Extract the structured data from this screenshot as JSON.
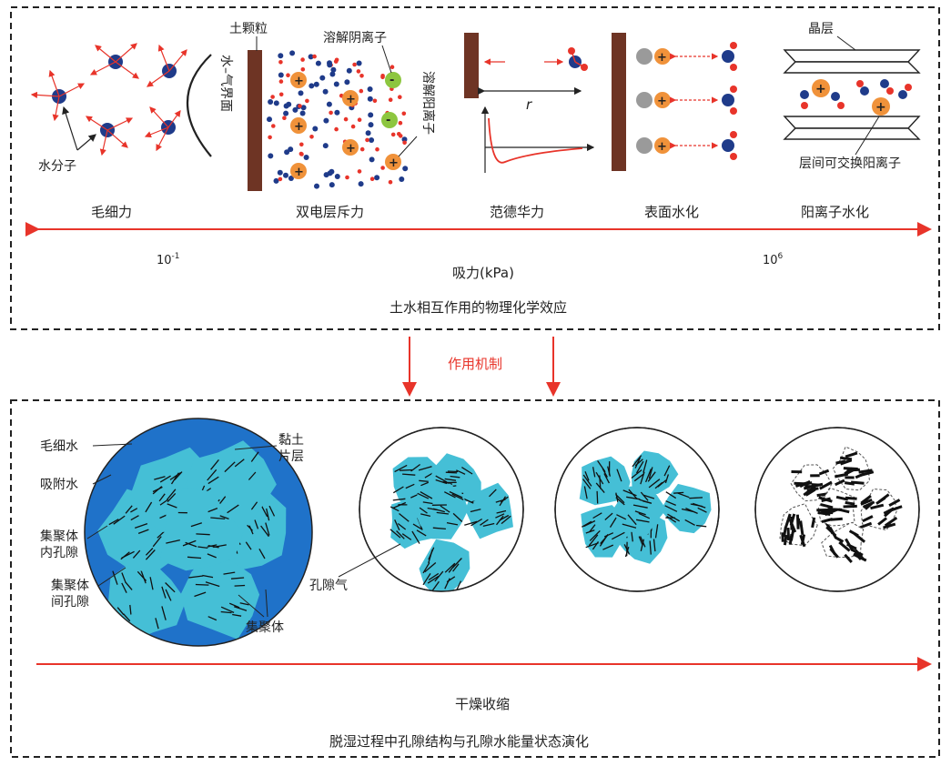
{
  "top_panel": {
    "title": "土水相互作用的物理化学效应",
    "axis_label": "吸力(kPa)",
    "axis_min": "10",
    "axis_min_exp": "-1",
    "axis_max": "10",
    "axis_max_exp": "6",
    "mechanisms": [
      "毛细力",
      "双电层斥力",
      "范德华力",
      "表面水化",
      "阳离子水化"
    ],
    "labels": {
      "water_molecule": "水分子",
      "interface": "水–气界面",
      "soil_particle": "土颗粒",
      "dissolved_anion": "溶解阴离子",
      "dissolved_cation": "溶解阳离子",
      "distance": "r",
      "crystal_layer": "晶层",
      "interlayer_cation": "层间可交换阳离子"
    }
  },
  "connector": {
    "label": "作用机制"
  },
  "bottom_panel": {
    "title": "脱湿过程中孔隙结构与孔隙水能量状态演化",
    "axis_label": "干燥收缩",
    "labels": {
      "capillary_water": "毛细水",
      "clay_sheet": "黏土\n片层",
      "adsorbed_water": "吸附水",
      "intra_pore": "集聚体\n内孔隙",
      "inter_pore": "集聚体\n间孔隙",
      "aggregate": "集聚体",
      "pore_air": "孔隙气"
    }
  },
  "colors": {
    "arrow_red": "#e8342a",
    "dark_blue": "#1f3b8a",
    "water_light": "#45bfd6",
    "water_dark": "#1f72c9",
    "brown": "#6e3424",
    "orange": "#f0923a",
    "green": "#8dc63f"
  },
  "icons": [
    "water-molecule-icon",
    "cation-plus-icon",
    "anion-minus-icon",
    "soil-particle-icon"
  ]
}
